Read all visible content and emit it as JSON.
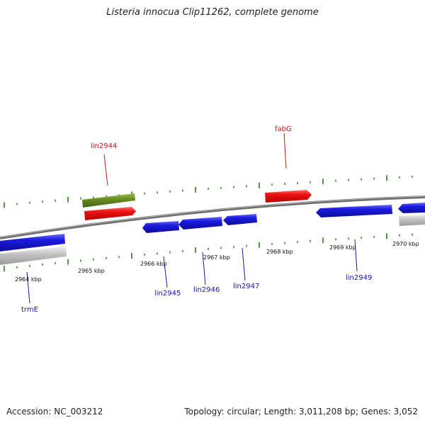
{
  "title": "Listeria innocua Clip11262, complete genome",
  "footer": {
    "accession": "Accession: NC_003212",
    "summary": "Topology: circular; Length: 3,011,208 bp; Genes: 3,052"
  },
  "colors": {
    "backbone": "#8a8a8a",
    "tick": "#2a7a1e",
    "forward_gene": "#e01010",
    "reverse_gene": "#1717d8",
    "rna_gene": "#6b8e23",
    "other_gene": "#bdbdbd",
    "forward_label": "#c81414",
    "reverse_label": "#1515b0"
  },
  "scale_labels": [
    {
      "text": "2964 kbp",
      "kbp": 2964
    },
    {
      "text": "2965 kbp",
      "kbp": 2965
    },
    {
      "text": "2966 kbp",
      "kbp": 2966
    },
    {
      "text": "2967 kbp",
      "kbp": 2967
    },
    {
      "text": "2968 kbp",
      "kbp": 2968
    },
    {
      "text": "2969 kbp",
      "kbp": 2969
    },
    {
      "text": "2970 kbp",
      "kbp": 2970
    }
  ],
  "gene_labels": [
    {
      "text": "lin2944",
      "strand": "forward"
    },
    {
      "text": "fabG",
      "strand": "forward"
    },
    {
      "text": "trmE",
      "strand": "reverse"
    },
    {
      "text": "lin2945",
      "strand": "reverse"
    },
    {
      "text": "lin2946",
      "strand": "reverse"
    },
    {
      "text": "lin2947",
      "strand": "reverse"
    },
    {
      "text": "lin2949",
      "strand": "reverse"
    }
  ]
}
